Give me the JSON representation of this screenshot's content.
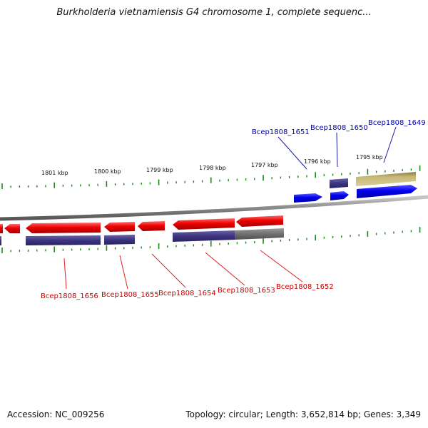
{
  "title": "Burkholderia vietnamiensis G4 chromosome 1, complete sequenc...",
  "footer": {
    "accession": "Accession: NC_009256",
    "summary": "Topology: circular; Length: 3,652,814 bp; Genes: 3,349"
  },
  "colors": {
    "forward_gene": "#0000ee",
    "reverse_gene": "#ee0000",
    "forward_label": "#0000aa",
    "reverse_label": "#cc0000",
    "cds_purple": "#3d3480",
    "cds_khaki": "#c8b878",
    "cds_gray": "#707070",
    "backbone": "#888888",
    "ticks": "#1a8a1a"
  },
  "scale_labels": [
    "1801 kbp",
    "1800 kbp",
    "1799 kbp",
    "1798 kbp",
    "1797 kbp",
    "1796 kbp",
    "1795 kbp"
  ],
  "forward_genes": [
    {
      "label": "Bcep1808_1651"
    },
    {
      "label": "Bcep1808_1650"
    },
    {
      "label": "Bcep1808_1649"
    }
  ],
  "reverse_genes": [
    {
      "label": "Bcep1808_1656"
    },
    {
      "label": "Bcep1808_1655"
    },
    {
      "label": "Bcep1808_1654"
    },
    {
      "label": "Bcep1808_1653"
    },
    {
      "label": "Bcep1808_1652"
    }
  ]
}
